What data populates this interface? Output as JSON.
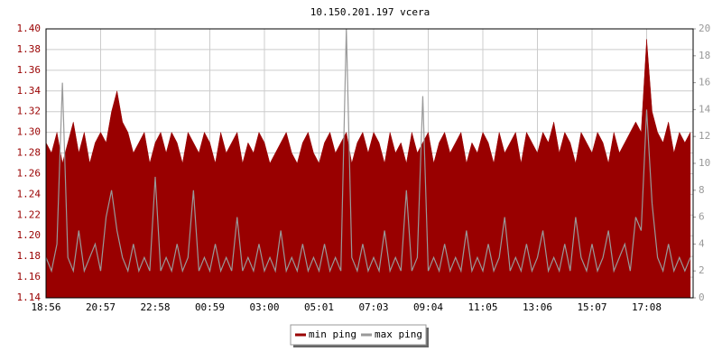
{
  "chart_data": {
    "type": "area-line",
    "title": "10.150.201.197 vcera",
    "x": [
      "18:56",
      null,
      null,
      null,
      null,
      null,
      null,
      null,
      null,
      null,
      "20:57",
      null,
      null,
      null,
      null,
      null,
      null,
      null,
      null,
      null,
      "22:58",
      null,
      null,
      null,
      null,
      null,
      null,
      null,
      null,
      null,
      "00:59",
      null,
      null,
      null,
      null,
      null,
      null,
      null,
      null,
      null,
      "03:00",
      null,
      null,
      null,
      null,
      null,
      null,
      null,
      null,
      null,
      "05:01",
      null,
      null,
      null,
      null,
      null,
      null,
      null,
      null,
      null,
      "07:03",
      null,
      null,
      null,
      null,
      null,
      null,
      null,
      null,
      null,
      "09:04",
      null,
      null,
      null,
      null,
      null,
      null,
      null,
      null,
      null,
      "11:05",
      null,
      null,
      null,
      null,
      null,
      null,
      null,
      null,
      null,
      "13:06",
      null,
      null,
      null,
      null,
      null,
      null,
      null,
      null,
      null,
      "15:07",
      null,
      null,
      null,
      null,
      null,
      null,
      null,
      null,
      null,
      "17:08",
      null,
      null,
      null,
      null,
      null,
      null,
      null,
      null
    ],
    "series": [
      {
        "name": "min ping",
        "color": "#990000",
        "axis": "y",
        "values": [
          1.29,
          1.28,
          1.3,
          1.27,
          1.29,
          1.31,
          1.28,
          1.3,
          1.27,
          1.29,
          1.3,
          1.29,
          1.32,
          1.34,
          1.31,
          1.3,
          1.28,
          1.29,
          1.3,
          1.27,
          1.29,
          1.3,
          1.28,
          1.3,
          1.29,
          1.27,
          1.3,
          1.29,
          1.28,
          1.3,
          1.29,
          1.27,
          1.3,
          1.28,
          1.29,
          1.3,
          1.27,
          1.29,
          1.28,
          1.3,
          1.29,
          1.27,
          1.28,
          1.29,
          1.3,
          1.28,
          1.27,
          1.29,
          1.3,
          1.28,
          1.27,
          1.29,
          1.3,
          1.28,
          1.29,
          1.3,
          1.27,
          1.29,
          1.3,
          1.28,
          1.3,
          1.29,
          1.27,
          1.3,
          1.28,
          1.29,
          1.27,
          1.3,
          1.28,
          1.29,
          1.3,
          1.27,
          1.29,
          1.3,
          1.28,
          1.29,
          1.3,
          1.27,
          1.29,
          1.28,
          1.3,
          1.29,
          1.27,
          1.3,
          1.28,
          1.29,
          1.3,
          1.27,
          1.3,
          1.29,
          1.28,
          1.3,
          1.29,
          1.31,
          1.28,
          1.3,
          1.29,
          1.27,
          1.3,
          1.29,
          1.28,
          1.3,
          1.29,
          1.27,
          1.3,
          1.28,
          1.29,
          1.3,
          1.31,
          1.3,
          1.39,
          1.32,
          1.3,
          1.29,
          1.31,
          1.28,
          1.3,
          1.29,
          1.3
        ]
      },
      {
        "name": "max ping",
        "color": "#999999",
        "axis": "y2",
        "values": [
          3,
          2,
          4,
          16,
          3,
          2,
          5,
          2,
          3,
          4,
          2,
          6,
          8,
          5,
          3,
          2,
          4,
          2,
          3,
          2,
          9,
          2,
          3,
          2,
          4,
          2,
          3,
          8,
          2,
          3,
          2,
          4,
          2,
          3,
          2,
          6,
          2,
          3,
          2,
          4,
          2,
          3,
          2,
          5,
          2,
          3,
          2,
          4,
          2,
          3,
          2,
          4,
          2,
          3,
          2,
          20,
          3,
          2,
          4,
          2,
          3,
          2,
          5,
          2,
          3,
          2,
          8,
          2,
          3,
          15,
          2,
          3,
          2,
          4,
          2,
          3,
          2,
          5,
          2,
          3,
          2,
          4,
          2,
          3,
          6,
          2,
          3,
          2,
          4,
          2,
          3,
          5,
          2,
          3,
          2,
          4,
          2,
          6,
          3,
          2,
          4,
          2,
          3,
          5,
          2,
          3,
          4,
          2,
          6,
          5,
          14,
          7,
          3,
          2,
          4,
          2,
          3,
          2,
          3
        ]
      }
    ],
    "ylim": [
      1.14,
      1.4
    ],
    "yticks": [
      1.14,
      1.16,
      1.18,
      {
        "value": 1.2,
        "label": "1.20"
      },
      1.22,
      1.24,
      1.26,
      1.28,
      {
        "value": 1.3,
        "label": "1.30"
      },
      1.32,
      1.34,
      1.36,
      1.38,
      {
        "value": 1.4,
        "label": "1.40"
      }
    ],
    "y2lim": [
      0,
      20
    ],
    "y2ticks": [
      0,
      2,
      4,
      6,
      8,
      10,
      12,
      14,
      16,
      18,
      20
    ],
    "grid": true,
    "legend": "bottom"
  }
}
